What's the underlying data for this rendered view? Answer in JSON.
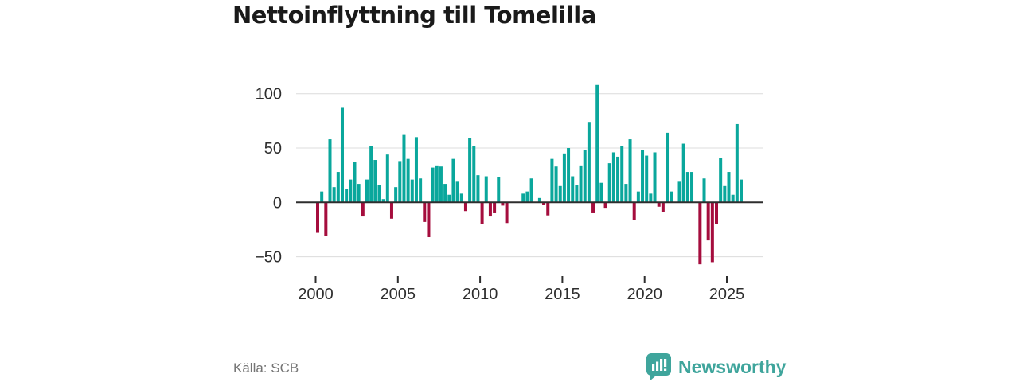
{
  "header": {
    "title": "Nettoinflyttning till Tomelilla"
  },
  "footer": {
    "source": "Källa: SCB",
    "brand": "Newsworthy"
  },
  "chart_data": {
    "type": "bar",
    "title": "Nettoinflyttning till Tomelilla",
    "xlabel": "",
    "ylabel": "",
    "x_unit": "quarter",
    "ylim": [
      -65,
      115
    ],
    "grid": true,
    "legend": "none",
    "colors": {
      "positive": "#0aa79c",
      "negative": "#a50d3d",
      "zero_line": "#2e2e2e",
      "gridline": "#dcdcdc",
      "axis_text": "#2e2e2e"
    },
    "yticks": [
      {
        "v": 100,
        "label": "100"
      },
      {
        "v": 50,
        "label": "50"
      },
      {
        "v": 0,
        "label": "0"
      },
      {
        "v": -50,
        "label": "−50"
      }
    ],
    "xticks": [
      {
        "index": 0,
        "label": "2000"
      },
      {
        "index": 20,
        "label": "2005"
      },
      {
        "index": 40,
        "label": "2010"
      },
      {
        "index": 60,
        "label": "2015"
      },
      {
        "index": 80,
        "label": "2020"
      },
      {
        "index": 100,
        "label": "2025"
      }
    ],
    "x": [
      "2000Q1",
      "2000Q2",
      "2000Q3",
      "2000Q4",
      "2001Q1",
      "2001Q2",
      "2001Q3",
      "2001Q4",
      "2002Q1",
      "2002Q2",
      "2002Q3",
      "2002Q4",
      "2003Q1",
      "2003Q2",
      "2003Q3",
      "2003Q4",
      "2004Q1",
      "2004Q2",
      "2004Q3",
      "2004Q4",
      "2005Q1",
      "2005Q2",
      "2005Q3",
      "2005Q4",
      "2006Q1",
      "2006Q2",
      "2006Q3",
      "2006Q4",
      "2007Q1",
      "2007Q2",
      "2007Q3",
      "2007Q4",
      "2008Q1",
      "2008Q2",
      "2008Q3",
      "2008Q4",
      "2009Q1",
      "2009Q2",
      "2009Q3",
      "2009Q4",
      "2010Q1",
      "2010Q2",
      "2010Q3",
      "2010Q4",
      "2011Q1",
      "2011Q2",
      "2011Q3",
      "2011Q4",
      "2012Q1",
      "2012Q2",
      "2012Q3",
      "2012Q4",
      "2013Q1",
      "2013Q2",
      "2013Q3",
      "2013Q4",
      "2014Q1",
      "2014Q2",
      "2014Q3",
      "2014Q4",
      "2015Q1",
      "2015Q2",
      "2015Q3",
      "2015Q4",
      "2016Q1",
      "2016Q2",
      "2016Q3",
      "2016Q4",
      "2017Q1",
      "2017Q2",
      "2017Q3",
      "2017Q4",
      "2018Q1",
      "2018Q2",
      "2018Q3",
      "2018Q4",
      "2019Q1",
      "2019Q2",
      "2019Q3",
      "2019Q4",
      "2020Q1",
      "2020Q2",
      "2020Q3",
      "2020Q4",
      "2021Q1",
      "2021Q2",
      "2021Q3",
      "2021Q4",
      "2022Q1",
      "2022Q2",
      "2022Q3",
      "2022Q4",
      "2023Q1",
      "2023Q2",
      "2023Q3",
      "2023Q4",
      "2024Q1",
      "2024Q2",
      "2024Q3",
      "2024Q4",
      "2025Q1",
      "2025Q2",
      "2025Q3",
      "2025Q4"
    ],
    "values": [
      -28,
      10,
      -31,
      58,
      14,
      28,
      87,
      12,
      21,
      37,
      17,
      -13,
      21,
      52,
      39,
      16,
      3,
      44,
      -15,
      14,
      38,
      62,
      40,
      21,
      60,
      22,
      -18,
      -32,
      32,
      34,
      33,
      17,
      7,
      40,
      19,
      8,
      -8,
      59,
      52,
      25,
      -20,
      24,
      -13,
      -10,
      23,
      -3,
      -19,
      0,
      0,
      0,
      8,
      10,
      22,
      0,
      4,
      -2,
      -12,
      40,
      33,
      15,
      45,
      50,
      24,
      16,
      34,
      48,
      74,
      -10,
      108,
      18,
      -5,
      36,
      46,
      42,
      52,
      17,
      58,
      -16,
      10,
      48,
      43,
      8,
      46,
      -4,
      -9,
      64,
      10,
      0,
      19,
      54,
      28,
      28,
      0,
      -57,
      22,
      -35,
      -55,
      -20,
      41,
      15,
      28,
      7,
      72,
      21
    ]
  }
}
